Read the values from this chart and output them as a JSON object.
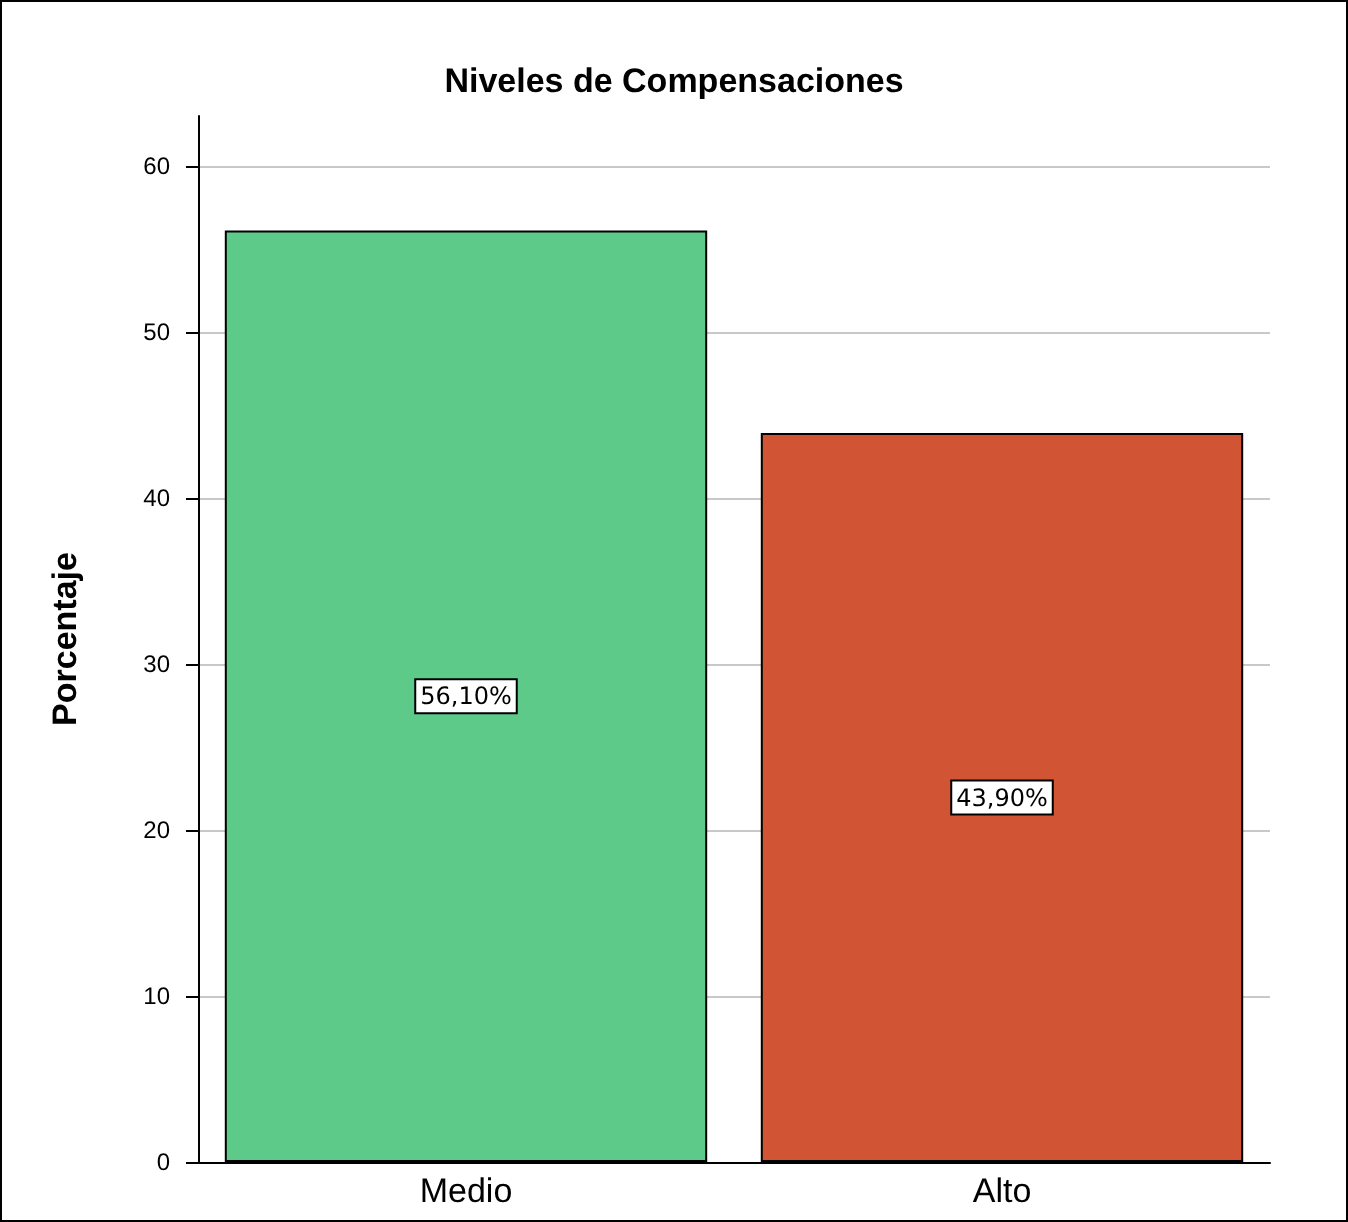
{
  "chart_data": {
    "type": "bar",
    "title": "Niveles de Compensaciones",
    "ylabel": "Porcentaje",
    "categories": [
      "Medio",
      "Alto"
    ],
    "values": [
      56.1,
      43.9
    ],
    "colors": [
      "#5dca8a",
      "#d15434"
    ],
    "value_labels": [
      "56,10%",
      "43,90%"
    ],
    "ylim": [
      0,
      63
    ],
    "yticks": [
      0,
      10,
      20,
      30,
      40,
      50,
      60
    ],
    "grid": "y"
  }
}
